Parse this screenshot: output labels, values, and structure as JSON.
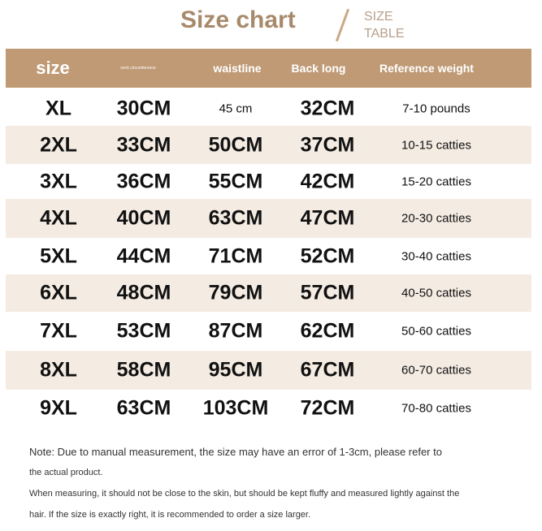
{
  "title": "Size chart",
  "subtitle": [
    "SIZE",
    "TABLE"
  ],
  "headers": [
    "size",
    "neck circumference",
    "waistline",
    "Back long",
    "Reference weight"
  ],
  "rows": [
    [
      "XL",
      "30CM",
      "45 cm",
      "32CM",
      "7-10 pounds"
    ],
    [
      "2XL",
      "33CM",
      "50CM",
      "37CM",
      "10-15 catties"
    ],
    [
      "3XL",
      "36CM",
      "55CM",
      "42CM",
      "15-20 catties"
    ],
    [
      "4XL",
      "40CM",
      "63CM",
      "47CM",
      "20-30 catties"
    ],
    [
      "5XL",
      "44CM",
      "71CM",
      "52CM",
      "30-40 catties"
    ],
    [
      "6XL",
      "48CM",
      "79CM",
      "57CM",
      "40-50 catties"
    ],
    [
      "7XL",
      "53CM",
      "87CM",
      "62CM",
      "50-60 catties"
    ],
    [
      "8XL",
      "58CM",
      "95CM",
      "67CM",
      "60-70 catties"
    ],
    [
      "9XL",
      "63CM",
      "103CM",
      "72CM",
      "70-80 catties"
    ]
  ],
  "notes": [
    "Note: Due to manual measurement, the size may have an error of 1-3cm, please refer to",
    "the actual product.",
    "When measuring, it should not be close to the skin, but should be kept fluffy and measured lightly against the",
    "hair. If the size is exactly right, it is recommended to order a size larger."
  ],
  "colors": {
    "header": "#bf9a75",
    "alt_row": "#f4ece3",
    "title": "#a88a6b"
  }
}
